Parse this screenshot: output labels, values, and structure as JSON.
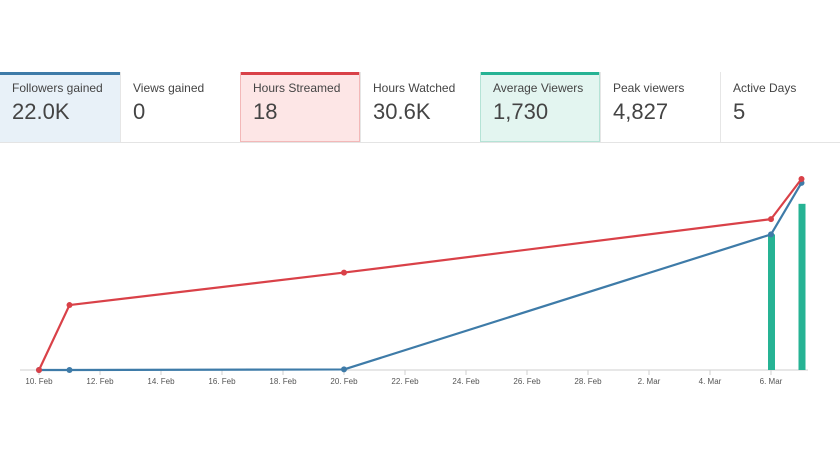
{
  "stats": [
    {
      "label": "Followers gained",
      "value": "22.0K"
    },
    {
      "label": "Views gained",
      "value": "0"
    },
    {
      "label": "Hours Streamed",
      "value": "18"
    },
    {
      "label": "Hours Watched",
      "value": "30.6K"
    },
    {
      "label": "Average Viewers",
      "value": "1,730"
    },
    {
      "label": "Peak viewers",
      "value": "4,827"
    },
    {
      "label": "Active Days",
      "value": "5"
    }
  ],
  "colors": {
    "followers": "#3e7ba8",
    "hours_streamed": "#d94148",
    "average_viewers": "#26b394",
    "axis": "#cfcfcf"
  },
  "chart_data": {
    "type": "line",
    "title": "",
    "xlabel": "",
    "ylabel": "",
    "x_ticks": [
      "10. Feb",
      "12. Feb",
      "14. Feb",
      "16. Feb",
      "18. Feb",
      "20. Feb",
      "22. Feb",
      "24. Feb",
      "26. Feb",
      "28. Feb",
      "2. Mar",
      "4. Mar",
      "6. Mar"
    ],
    "x_range_days": [
      0,
      25
    ],
    "y_range": [
      0,
      1
    ],
    "series": [
      {
        "name": "Followers gained",
        "type": "line",
        "points": [
          [
            0,
            0
          ],
          [
            1,
            0
          ],
          [
            10,
            0.003
          ],
          [
            24,
            0.71
          ],
          [
            25,
            0.98
          ]
        ]
      },
      {
        "name": "Hours Streamed",
        "type": "line",
        "points": [
          [
            0,
            0
          ],
          [
            1,
            0.34
          ],
          [
            10,
            0.51
          ],
          [
            24,
            0.79
          ],
          [
            25,
            1.0
          ]
        ]
      },
      {
        "name": "Average Viewers",
        "type": "column",
        "points": [
          [
            24,
            0.71
          ],
          [
            25,
            0.87
          ]
        ]
      }
    ]
  }
}
